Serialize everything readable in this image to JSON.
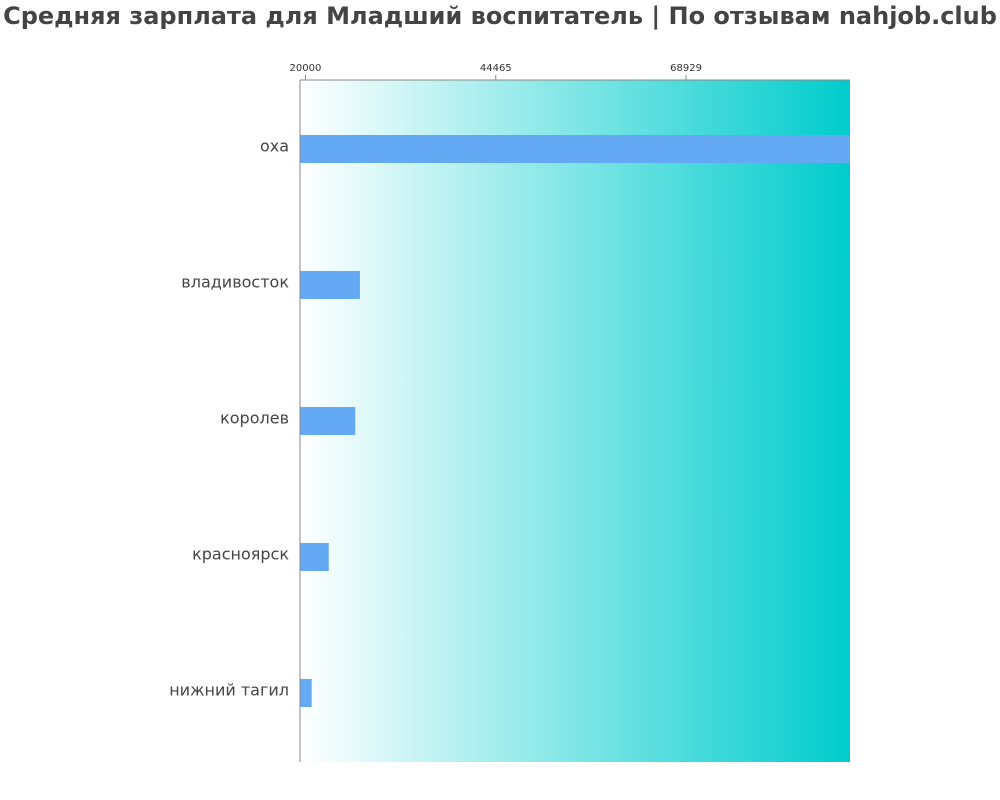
{
  "chart_data": {
    "type": "bar",
    "orientation": "horizontal",
    "title": "Средняя зарплата для Младший воспитатель | По отзывам nahjob.club",
    "categories": [
      "оха",
      "владивосток",
      "королев",
      "красноярск",
      "нижний тагил"
    ],
    "values": [
      90000,
      27000,
      26400,
      23000,
      20800
    ],
    "xticks": [
      20000,
      44465,
      68929
    ],
    "xlim": [
      19300,
      90000
    ],
    "xlabel": "",
    "ylabel": "",
    "grid": false,
    "legend": "none",
    "colors": {
      "bar": "#64a9f4",
      "gradient_start": "#ffffff",
      "gradient_end": "#00cccc",
      "axis": "#888888",
      "text": "#444444"
    }
  }
}
